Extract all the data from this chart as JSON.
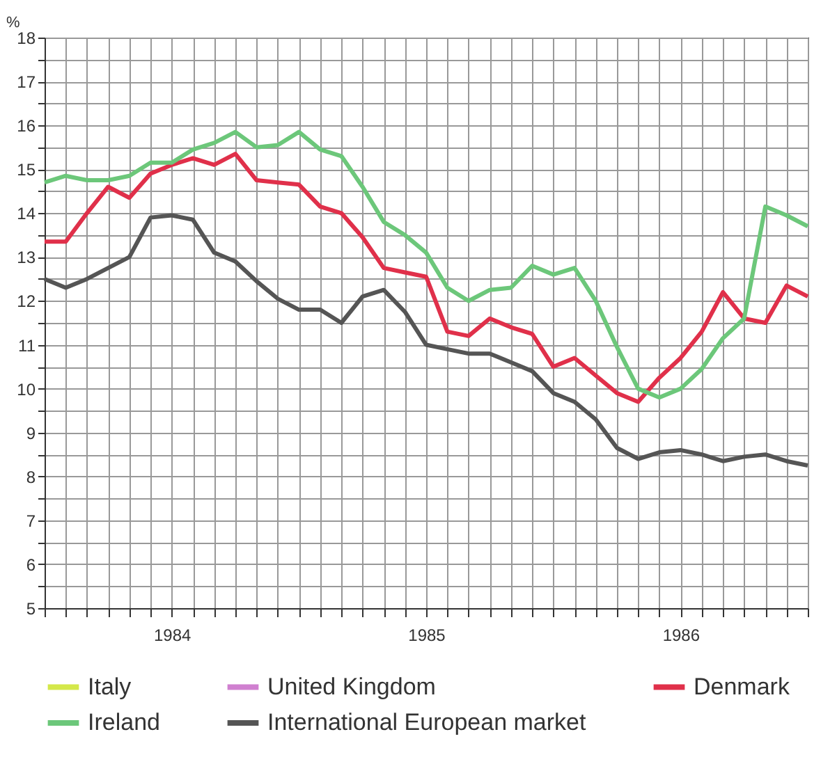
{
  "chart_data": {
    "type": "line",
    "ylabel": "%",
    "categories": [
      null,
      null,
      null,
      null,
      null,
      null,
      "1984",
      null,
      null,
      null,
      null,
      null,
      null,
      null,
      null,
      null,
      null,
      null,
      "1985",
      null,
      null,
      null,
      null,
      null,
      null,
      null,
      null,
      null,
      null,
      null,
      "1986",
      null,
      null,
      null,
      null,
      null,
      null
    ],
    "ylim": [
      5,
      18
    ],
    "yticks": [
      5,
      {
        "value": 5.5,
        "label": null
      },
      6,
      {
        "value": 6.5,
        "label": null
      },
      7,
      {
        "value": 7.5,
        "label": null
      },
      8,
      {
        "value": 8.5,
        "label": null
      },
      9,
      {
        "value": 9.5,
        "label": null
      },
      10,
      {
        "value": 10.5,
        "label": null
      },
      11,
      {
        "value": 11.5,
        "label": null
      },
      12,
      {
        "value": 12.5,
        "label": null
      },
      13,
      {
        "value": 13.5,
        "label": null
      },
      14,
      {
        "value": 14.5,
        "label": null
      },
      15,
      {
        "value": 15.5,
        "label": null
      },
      16,
      {
        "value": 16.5,
        "label": null
      },
      17,
      {
        "value": 17.5,
        "label": null
      },
      18
    ],
    "grid": true,
    "legend": "bottom",
    "marker": "none",
    "line_style": "solid",
    "series": [
      {
        "name": "Italy",
        "color": "#d4e84a",
        "values": [
          null,
          null,
          null,
          null,
          null,
          null,
          null,
          null,
          null,
          null,
          null,
          null,
          null,
          null,
          null,
          null,
          null,
          null,
          null,
          null,
          null,
          null,
          null,
          null,
          null,
          null,
          null,
          null,
          null,
          null,
          null,
          null,
          null,
          null,
          null,
          null,
          null
        ]
      },
      {
        "name": "United Kingdom",
        "color": "#d080d0",
        "values": [
          null,
          null,
          null,
          null,
          null,
          null,
          null,
          null,
          null,
          null,
          null,
          null,
          null,
          null,
          null,
          null,
          null,
          null,
          null,
          null,
          null,
          null,
          null,
          null,
          null,
          null,
          null,
          null,
          null,
          null,
          null,
          null,
          null,
          null,
          null,
          null,
          null
        ]
      },
      {
        "name": "Denmark",
        "color": "#e0304a",
        "values": [
          13.35,
          13.35,
          14.0,
          14.6,
          14.35,
          14.9,
          15.1,
          15.25,
          15.1,
          15.35,
          14.75,
          14.7,
          14.65,
          14.15,
          14.0,
          13.45,
          12.75,
          12.65,
          12.55,
          11.3,
          11.2,
          11.6,
          11.4,
          11.25,
          10.5,
          10.7,
          10.3,
          9.9,
          9.7,
          10.25,
          10.7,
          11.3,
          12.2,
          11.6,
          11.5,
          12.35,
          12.1
        ]
      },
      {
        "name": "Ireland",
        "color": "#6cc77a",
        "values": [
          14.7,
          14.85,
          14.75,
          14.75,
          14.85,
          15.15,
          15.15,
          15.45,
          15.6,
          15.85,
          15.5,
          15.55,
          15.85,
          15.45,
          15.3,
          14.6,
          13.8,
          13.5,
          13.1,
          12.3,
          12.0,
          12.25,
          12.3,
          12.8,
          12.6,
          12.75,
          12.0,
          10.95,
          10.0,
          9.8,
          10.0,
          10.45,
          11.15,
          11.6,
          14.15,
          13.95,
          13.7
        ]
      },
      {
        "name": "International European market",
        "color": "#555555",
        "values": [
          12.5,
          12.3,
          12.5,
          12.75,
          13.0,
          13.9,
          13.95,
          13.85,
          13.1,
          12.9,
          12.45,
          12.05,
          11.8,
          11.8,
          11.5,
          12.1,
          12.25,
          11.75,
          11.0,
          10.9,
          10.8,
          10.8,
          10.6,
          10.4,
          9.9,
          9.7,
          9.3,
          8.65,
          8.4,
          8.55,
          8.6,
          8.5,
          8.35,
          8.45,
          8.5,
          8.35,
          8.25
        ]
      }
    ]
  }
}
